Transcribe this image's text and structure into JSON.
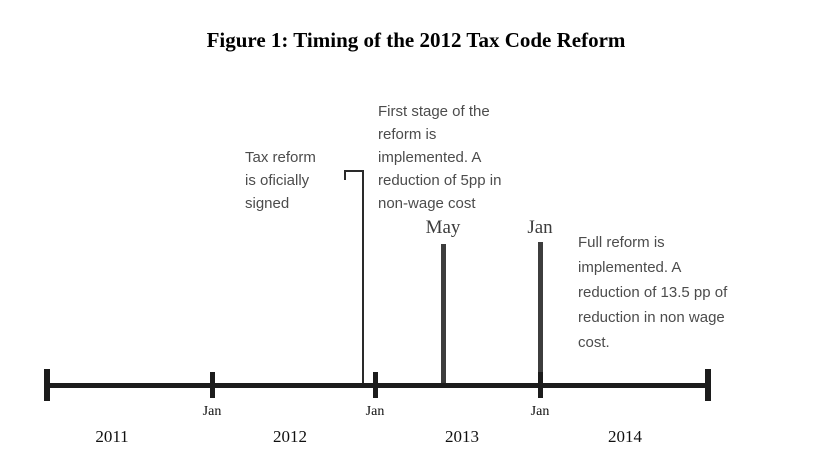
{
  "figure": {
    "title": "Figure 1: Timing of the 2012 Tax Code Reform"
  },
  "annotations": {
    "signed": {
      "lines": [
        "Tax reform",
        "is oficially",
        "signed"
      ]
    },
    "first_stage": {
      "month": "May",
      "lines": [
        "First stage of the",
        "reform is",
        "implemented. A",
        "reduction of 5pp in",
        "non-wage cost"
      ]
    },
    "full_reform": {
      "month": "Jan",
      "lines": [
        "Full reform is",
        "implemented. A",
        "reduction of 13.5 pp of",
        "reduction in non wage",
        "cost."
      ]
    }
  },
  "axis": {
    "tick_labels": [
      "Jan",
      "Jan",
      "Jan"
    ],
    "year_labels": [
      "2011",
      "2012",
      "2013",
      "2014"
    ]
  },
  "colors": {
    "axis_line": "#1c1c1c",
    "event_line": "#3d3d3d",
    "annotation_text": "#4c4c4c",
    "title_text": "#000000"
  }
}
